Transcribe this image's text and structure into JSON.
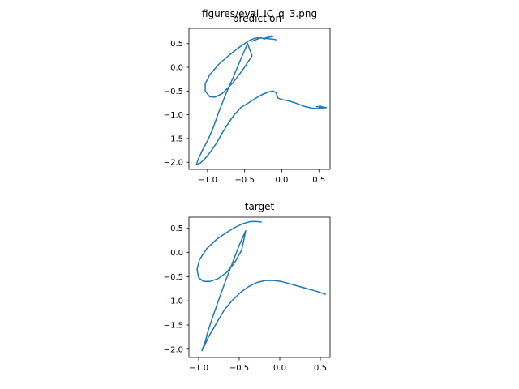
{
  "figure": {
    "suptitle": "figures/eval_IC_q_3.png"
  },
  "chart_data": [
    {
      "type": "line",
      "title": "prediction_",
      "xlabel": "",
      "ylabel": "",
      "xlim": [
        -1.25,
        0.65
      ],
      "ylim": [
        -2.15,
        0.82
      ],
      "xticks": [
        -1.0,
        -0.5,
        0.0,
        0.5
      ],
      "xtick_labels": [
        "−1.0",
        "−0.5",
        "0.0",
        "0.5"
      ],
      "yticks": [
        0.5,
        0.0,
        -0.5,
        -1.0,
        -1.5,
        -2.0
      ],
      "ytick_labels": [
        "0.5",
        "0.0",
        "−0.5",
        "−1.0",
        "−1.5",
        "−2.0"
      ],
      "grid": false,
      "series": [
        {
          "color": "#1f77b4",
          "x": [
            -0.23,
            -0.28,
            -0.34,
            -0.42,
            -0.5,
            -0.6,
            -0.72,
            -0.85,
            -0.97,
            -1.03,
            -1.03,
            -0.97,
            -0.9,
            -0.8,
            -0.66,
            -0.52,
            -0.4,
            -0.46,
            -0.55,
            -0.65,
            -0.75,
            -0.85,
            -0.93,
            -1.0,
            -1.07,
            -1.12,
            -1.15,
            -1.1,
            -1.03,
            -0.96,
            -0.88,
            -0.8,
            -0.72,
            -0.64,
            -0.55,
            -0.45,
            -0.36,
            -0.27,
            -0.18,
            -0.12,
            -0.08,
            -0.05,
            0.0,
            0.1,
            0.2,
            0.3,
            0.4,
            0.47,
            0.51,
            0.54,
            0.56
          ],
          "y": [
            0.6,
            0.62,
            0.62,
            0.58,
            0.5,
            0.39,
            0.24,
            0.06,
            -0.16,
            -0.35,
            -0.5,
            -0.62,
            -0.63,
            -0.55,
            -0.33,
            -0.04,
            0.24,
            0.5,
            0.18,
            -0.2,
            -0.55,
            -0.95,
            -1.3,
            -1.55,
            -1.75,
            -1.92,
            -2.05,
            -2.02,
            -1.92,
            -1.78,
            -1.6,
            -1.38,
            -1.18,
            -1.0,
            -0.85,
            -0.75,
            -0.66,
            -0.58,
            -0.52,
            -0.5,
            -0.53,
            -0.65,
            -0.68,
            -0.71,
            -0.76,
            -0.82,
            -0.86,
            -0.87,
            -0.86,
            -0.85,
            -0.85
          ]
        },
        {
          "color": "#1f77b4",
          "x": [
            -0.4,
            -0.32,
            -0.28,
            -0.24,
            -0.18,
            -0.14,
            -0.12,
            -0.18,
            -0.24,
            -0.17,
            -0.1,
            -0.08
          ],
          "y": [
            0.55,
            0.6,
            0.62,
            0.6,
            0.64,
            0.66,
            0.65,
            0.63,
            0.61,
            0.6,
            0.59,
            0.58
          ]
        },
        {
          "color": "#1f77b4",
          "x": [
            0.47,
            0.52,
            0.56,
            0.6,
            0.55,
            0.5,
            0.56
          ],
          "y": [
            -0.83,
            -0.82,
            -0.84,
            -0.85,
            -0.86,
            -0.85,
            -0.86
          ]
        }
      ]
    },
    {
      "type": "line",
      "title": "target",
      "xlabel": "",
      "ylabel": "",
      "xlim": [
        -1.12,
        0.62
      ],
      "ylim": [
        -2.17,
        0.73
      ],
      "xticks": [
        -1.0,
        -0.5,
        0.0,
        0.5
      ],
      "xtick_labels": [
        "−1.0",
        "−0.5",
        "0.0",
        "0.5"
      ],
      "yticks": [
        0.5,
        0.0,
        -0.5,
        -1.0,
        -1.5,
        -2.0
      ],
      "ytick_labels": [
        "0.5",
        "0.0",
        "−0.5",
        "−1.0",
        "−1.5",
        "−2.0"
      ],
      "grid": false,
      "series": [
        {
          "color": "#1f77b4",
          "x": [
            -0.23,
            -0.28,
            -0.36,
            -0.45,
            -0.55,
            -0.66,
            -0.78,
            -0.9,
            -0.99,
            -1.02,
            -1.0,
            -0.94,
            -0.86,
            -0.76,
            -0.66,
            -0.56,
            -0.47,
            -0.42,
            -0.5,
            -0.58,
            -0.66,
            -0.74,
            -0.82,
            -0.88,
            -0.92,
            -0.96,
            -0.92,
            -0.88,
            -0.82,
            -0.76,
            -0.68,
            -0.58,
            -0.48,
            -0.38,
            -0.28,
            -0.18,
            -0.08,
            0.02,
            0.15,
            0.3,
            0.45,
            0.56
          ],
          "y": [
            0.63,
            0.64,
            0.64,
            0.6,
            0.52,
            0.41,
            0.27,
            0.08,
            -0.15,
            -0.35,
            -0.52,
            -0.6,
            -0.6,
            -0.54,
            -0.42,
            -0.22,
            0.05,
            0.45,
            0.15,
            -0.2,
            -0.55,
            -0.92,
            -1.3,
            -1.6,
            -1.85,
            -2.03,
            -1.9,
            -1.75,
            -1.58,
            -1.4,
            -1.18,
            -0.98,
            -0.82,
            -0.7,
            -0.62,
            -0.58,
            -0.58,
            -0.6,
            -0.66,
            -0.73,
            -0.8,
            -0.86
          ]
        }
      ]
    }
  ]
}
